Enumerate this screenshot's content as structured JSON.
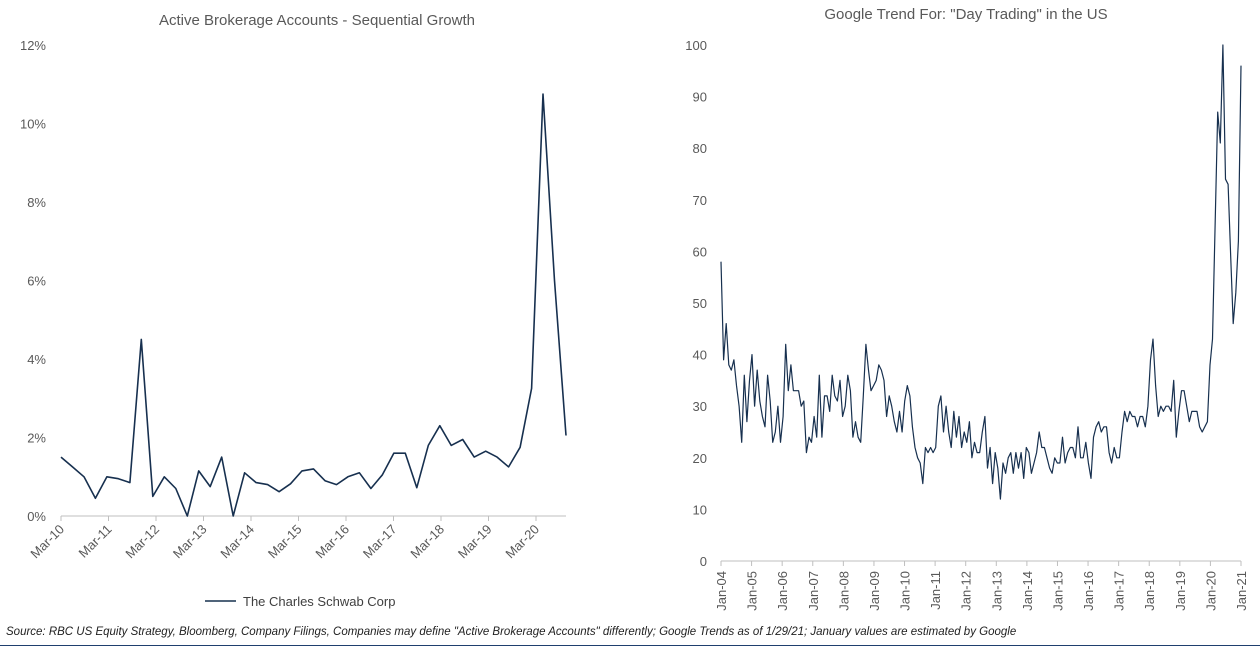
{
  "chart_data": [
    {
      "type": "line",
      "title": "Active Brokerage Accounts - Sequential Growth",
      "ylim": [
        0,
        12
      ],
      "y_ticks": [
        "0%",
        "2%",
        "4%",
        "6%",
        "8%",
        "10%",
        "12%"
      ],
      "y_tick_values": [
        0,
        2,
        4,
        6,
        8,
        10,
        12
      ],
      "x_ticks": [
        "Mar-10",
        "Mar-11",
        "Mar-12",
        "Mar-13",
        "Mar-14",
        "Mar-15",
        "Mar-16",
        "Mar-17",
        "Mar-18",
        "Mar-19",
        "Mar-20"
      ],
      "legend": "The Charles Schwab Corp",
      "color": "#17304f",
      "series": [
        {
          "name": "The Charles Schwab Corp",
          "values": [
            1.5,
            1.25,
            1.0,
            0.45,
            1.0,
            0.95,
            0.85,
            4.5,
            0.5,
            1.0,
            0.7,
            0.0,
            1.15,
            0.75,
            1.5,
            0.0,
            1.1,
            0.85,
            0.8,
            0.62,
            0.82,
            1.15,
            1.2,
            0.9,
            0.8,
            1.0,
            1.1,
            0.7,
            1.05,
            1.6,
            1.6,
            0.72,
            1.8,
            2.3,
            1.8,
            1.95,
            1.5,
            1.65,
            1.5,
            1.25,
            1.75,
            3.25,
            10.75,
            6.0,
            2.05
          ]
        }
      ]
    },
    {
      "type": "line",
      "title": "Google Trend For: \"Day Trading\" in the US",
      "ylim": [
        0,
        100
      ],
      "y_ticks": [
        "0",
        "10",
        "20",
        "30",
        "40",
        "50",
        "60",
        "70",
        "80",
        "90",
        "100"
      ],
      "y_tick_values": [
        0,
        10,
        20,
        30,
        40,
        50,
        60,
        70,
        80,
        90,
        100
      ],
      "x_ticks": [
        "Jan-04",
        "Jan-05",
        "Jan-06",
        "Jan-07",
        "Jan-08",
        "Jan-09",
        "Jan-10",
        "Jan-11",
        "Jan-12",
        "Jan-13",
        "Jan-14",
        "Jan-15",
        "Jan-16",
        "Jan-17",
        "Jan-18",
        "Jan-19",
        "Jan-20",
        "Jan-21"
      ],
      "color": "#17304f",
      "series": [
        {
          "name": "",
          "values": [
            58,
            39,
            46,
            38,
            37,
            39,
            34,
            30,
            23,
            36,
            27,
            35,
            40,
            30,
            37,
            31,
            28,
            26,
            36,
            31,
            23,
            25,
            30,
            23,
            28,
            42,
            33,
            38,
            33,
            33,
            33,
            30,
            31,
            21,
            24,
            23,
            28,
            24,
            36,
            24,
            32,
            32,
            29,
            36,
            32,
            31,
            35,
            28,
            30,
            36,
            33,
            24,
            27,
            24,
            23,
            32,
            42,
            37,
            33,
            34,
            35,
            38,
            37,
            35,
            28,
            32,
            30,
            27,
            25,
            29,
            25,
            31,
            34,
            32,
            26,
            22,
            20,
            19,
            15,
            22,
            21,
            22,
            21,
            22,
            30,
            32,
            25,
            30,
            25,
            22,
            29,
            24,
            28,
            22,
            25,
            23,
            27,
            20,
            23,
            21,
            21,
            25,
            28,
            18,
            22,
            15,
            21,
            18,
            12,
            19,
            17,
            20,
            21,
            17,
            21,
            18,
            21,
            16,
            22,
            21,
            17,
            19,
            21,
            25,
            22,
            22,
            20,
            18,
            17,
            20,
            19,
            19,
            24,
            19,
            21,
            22,
            22,
            20,
            26,
            20,
            20,
            23,
            19,
            16,
            24,
            26,
            27,
            25,
            26,
            26,
            21,
            19,
            22,
            20,
            20,
            25,
            29,
            27,
            29,
            28,
            28,
            26,
            28,
            28,
            26,
            30,
            39,
            43,
            34,
            28,
            30,
            29,
            30,
            30,
            29,
            35,
            24,
            29,
            33,
            33,
            30,
            27,
            29,
            29,
            29,
            26,
            25,
            26,
            27,
            38,
            43,
            65,
            87,
            81,
            100,
            74,
            73,
            59,
            46,
            52,
            62,
            96
          ]
        }
      ]
    }
  ],
  "footer": {
    "source": "Source: RBC US Equity Strategy, Bloomberg, Company Filings, Companies may define \"Active Brokerage Accounts\" differently; Google Trends as of 1/29/21; January values are estimated by Google"
  }
}
